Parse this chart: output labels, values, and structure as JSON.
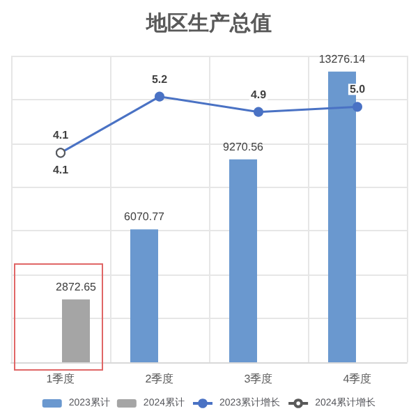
{
  "chart_data": {
    "type": "bar",
    "title": "地区生产总值",
    "categories": [
      "1季度",
      "2季度",
      "3季度",
      "4季度"
    ],
    "series": [
      {
        "name": "2023累计",
        "color": "#6a98cf",
        "values": [
          null,
          6070.77,
          9270.56,
          13276.14
        ]
      },
      {
        "name": "2024累计",
        "color": "#a5a5a5",
        "values": [
          2872.65,
          null,
          null,
          null
        ]
      },
      {
        "name": "2023累计增长",
        "type": "line",
        "axis": "y2",
        "color": "#4a72c4",
        "values": [
          4.1,
          5.2,
          4.9,
          5.0
        ],
        "value_labels": [
          "4.1",
          "5.2",
          "4.9",
          "5.0"
        ]
      },
      {
        "name": "2024累计增长",
        "type": "line",
        "axis": "y2",
        "color": "#595959",
        "values": [
          4.1,
          null,
          null,
          null
        ]
      }
    ],
    "data_labels": true,
    "grid": true,
    "legend": "bottom",
    "marker": "circle",
    "tick_labels": "x"
  }
}
